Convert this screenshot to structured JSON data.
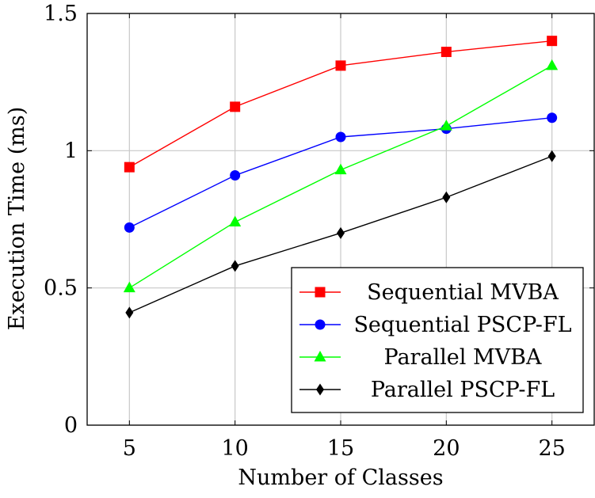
{
  "chart_data": {
    "type": "line",
    "title": "",
    "xlabel": "Number of Classes",
    "ylabel": "Execution Time (ms)",
    "x": [
      5,
      10,
      15,
      20,
      25
    ],
    "xlim": [
      3,
      27
    ],
    "ylim": [
      0,
      1.5
    ],
    "x_ticks": [
      "5",
      "10",
      "15",
      "20",
      "25"
    ],
    "y_ticks": [
      "0",
      "0.5",
      "1",
      "1.5"
    ],
    "y_tick_values": [
      0,
      0.5,
      1,
      1.5
    ],
    "grid": true,
    "legend_position": "bottom-right",
    "series": [
      {
        "name": "Sequential MVBA",
        "color": "#ff0000",
        "marker": "square",
        "values": [
          0.94,
          1.16,
          1.31,
          1.36,
          1.4
        ]
      },
      {
        "name": "Sequential PSCP-FL",
        "color": "#0000ff",
        "marker": "circle",
        "values": [
          0.72,
          0.91,
          1.05,
          1.08,
          1.12
        ]
      },
      {
        "name": "Parallel MVBA",
        "color": "#00ff00",
        "marker": "triangle",
        "values": [
          0.5,
          0.74,
          0.93,
          1.09,
          1.31
        ]
      },
      {
        "name": "Parallel PSCP-FL",
        "color": "#000000",
        "marker": "diamond",
        "values": [
          0.41,
          0.58,
          0.7,
          0.83,
          0.98
        ]
      }
    ]
  }
}
